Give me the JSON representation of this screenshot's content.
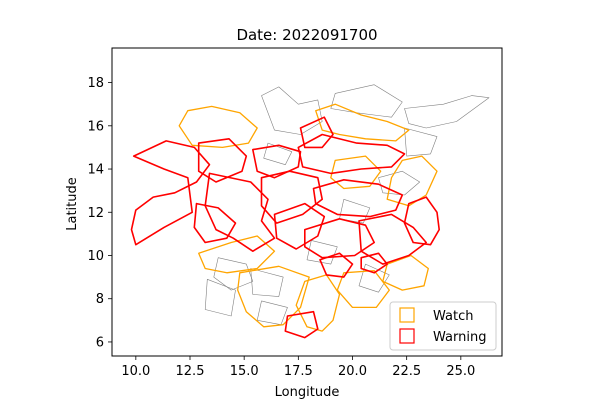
{
  "chart_data": {
    "type": "map",
    "title": "Date: 2022091700",
    "xlabel": "Longitude",
    "ylabel": "Latitude",
    "xlim": [
      8.9,
      26.9
    ],
    "ylim": [
      5.35,
      19.6
    ],
    "x_ticks": [
      10.0,
      12.5,
      15.0,
      17.5,
      20.0,
      22.5,
      25.0
    ],
    "x_tick_labels": [
      "10.0",
      "12.5",
      "15.0",
      "17.5",
      "20.0",
      "22.5",
      "25.0"
    ],
    "y_ticks": [
      6,
      8,
      10,
      12,
      14,
      16,
      18
    ],
    "y_tick_labels": [
      "6",
      "8",
      "10",
      "12",
      "14",
      "16",
      "18"
    ],
    "legend": {
      "placement": "lower-right",
      "entries": [
        {
          "label": "Watch",
          "color": "#ffa500"
        },
        {
          "label": "Warning",
          "color": "#ff0000"
        }
      ]
    },
    "base_color": "#808080",
    "watch_color": "#ffa500",
    "warning_color": "#ff0000",
    "base_regions": [
      [
        [
          15.8,
          17.4
        ],
        [
          16.6,
          17.8
        ],
        [
          17.5,
          17.0
        ],
        [
          18.4,
          17.2
        ],
        [
          18.6,
          16.2
        ],
        [
          17.6,
          15.6
        ],
        [
          16.4,
          15.8
        ]
      ],
      [
        [
          19.2,
          17.5
        ],
        [
          21.0,
          17.9
        ],
        [
          22.3,
          17.1
        ],
        [
          21.8,
          16.4
        ],
        [
          20.2,
          16.6
        ],
        [
          19.0,
          16.8
        ]
      ],
      [
        [
          22.4,
          16.8
        ],
        [
          24.2,
          17.0
        ],
        [
          25.5,
          17.4
        ],
        [
          26.3,
          17.3
        ],
        [
          24.8,
          16.2
        ],
        [
          23.4,
          15.9
        ],
        [
          22.6,
          16.1
        ]
      ],
      [
        [
          22.4,
          15.9
        ],
        [
          23.9,
          15.5
        ],
        [
          23.6,
          14.7
        ],
        [
          22.5,
          14.6
        ]
      ],
      [
        [
          21.2,
          13.6
        ],
        [
          22.3,
          13.9
        ],
        [
          23.1,
          13.4
        ],
        [
          22.4,
          12.8
        ],
        [
          21.4,
          12.9
        ]
      ],
      [
        [
          13.8,
          9.9
        ],
        [
          15.1,
          9.6
        ],
        [
          15.4,
          8.8
        ],
        [
          14.4,
          8.4
        ],
        [
          13.6,
          9.0
        ]
      ],
      [
        [
          15.3,
          9.4
        ],
        [
          16.8,
          9.0
        ],
        [
          16.6,
          8.1
        ],
        [
          15.4,
          8.2
        ]
      ],
      [
        [
          18.1,
          10.7
        ],
        [
          19.3,
          10.4
        ],
        [
          19.0,
          9.6
        ],
        [
          17.9,
          9.8
        ]
      ],
      [
        [
          20.6,
          9.6
        ],
        [
          21.7,
          9.1
        ],
        [
          21.2,
          8.3
        ],
        [
          20.3,
          8.6
        ]
      ],
      [
        [
          13.3,
          8.9
        ],
        [
          14.6,
          8.4
        ],
        [
          14.4,
          7.2
        ],
        [
          13.2,
          7.5
        ]
      ],
      [
        [
          15.8,
          7.9
        ],
        [
          17.0,
          7.6
        ],
        [
          16.7,
          6.8
        ],
        [
          15.6,
          7.0
        ]
      ],
      [
        [
          19.6,
          12.6
        ],
        [
          20.8,
          12.2
        ],
        [
          20.5,
          11.5
        ],
        [
          19.4,
          11.7
        ]
      ],
      [
        [
          16.1,
          15.2
        ],
        [
          17.2,
          14.8
        ],
        [
          16.9,
          14.2
        ],
        [
          15.9,
          14.5
        ]
      ]
    ],
    "watch_regions": [
      [
        [
          12.0,
          16.0
        ],
        [
          12.4,
          16.7
        ],
        [
          13.5,
          16.9
        ],
        [
          14.8,
          16.6
        ],
        [
          15.6,
          15.9
        ],
        [
          15.2,
          15.2
        ],
        [
          14.0,
          15.0
        ],
        [
          12.6,
          15.1
        ]
      ],
      [
        [
          18.3,
          16.7
        ],
        [
          19.2,
          17.0
        ],
        [
          20.4,
          16.5
        ],
        [
          21.6,
          16.2
        ],
        [
          22.6,
          15.8
        ],
        [
          22.0,
          15.3
        ],
        [
          20.6,
          15.4
        ],
        [
          19.4,
          15.6
        ],
        [
          18.6,
          15.8
        ]
      ],
      [
        [
          22.3,
          14.4
        ],
        [
          23.2,
          14.6
        ],
        [
          23.9,
          13.9
        ],
        [
          23.4,
          12.8
        ],
        [
          22.6,
          12.3
        ],
        [
          21.6,
          12.6
        ],
        [
          21.8,
          13.6
        ]
      ],
      [
        [
          12.9,
          10.1
        ],
        [
          14.4,
          10.6
        ],
        [
          15.6,
          10.9
        ],
        [
          16.4,
          10.2
        ],
        [
          15.6,
          9.4
        ],
        [
          14.2,
          9.2
        ],
        [
          13.2,
          9.4
        ]
      ],
      [
        [
          14.8,
          9.2
        ],
        [
          16.6,
          9.5
        ],
        [
          18.0,
          9.0
        ],
        [
          17.6,
          7.6
        ],
        [
          16.8,
          6.8
        ],
        [
          15.9,
          6.7
        ],
        [
          15.1,
          7.4
        ],
        [
          14.7,
          8.4
        ]
      ],
      [
        [
          17.8,
          8.8
        ],
        [
          18.8,
          9.1
        ],
        [
          19.4,
          8.2
        ],
        [
          19.1,
          7.0
        ],
        [
          18.6,
          6.5
        ],
        [
          17.9,
          6.7
        ],
        [
          17.4,
          7.7
        ]
      ],
      [
        [
          19.6,
          9.2
        ],
        [
          21.0,
          9.3
        ],
        [
          21.7,
          8.4
        ],
        [
          21.1,
          7.6
        ],
        [
          20.0,
          7.6
        ],
        [
          19.3,
          8.4
        ]
      ],
      [
        [
          21.6,
          9.6
        ],
        [
          22.7,
          10.0
        ],
        [
          23.5,
          9.4
        ],
        [
          23.3,
          8.6
        ],
        [
          22.3,
          8.4
        ],
        [
          21.4,
          8.8
        ]
      ],
      [
        [
          19.2,
          14.4
        ],
        [
          20.6,
          14.6
        ],
        [
          21.3,
          13.9
        ],
        [
          20.8,
          13.2
        ],
        [
          19.6,
          13.1
        ],
        [
          19.0,
          13.6
        ]
      ]
    ],
    "warning_regions": [
      [
        [
          9.9,
          14.6
        ],
        [
          11.4,
          15.3
        ],
        [
          12.7,
          15.0
        ],
        [
          13.4,
          14.2
        ],
        [
          12.8,
          13.4
        ],
        [
          11.8,
          12.9
        ],
        [
          10.8,
          12.7
        ],
        [
          10.0,
          12.1
        ],
        [
          9.8,
          11.2
        ],
        [
          10.0,
          10.5
        ],
        [
          11.3,
          11.3
        ],
        [
          12.6,
          12.0
        ],
        [
          12.4,
          13.6
        ],
        [
          11.3,
          14.0
        ]
      ],
      [
        [
          12.9,
          15.2
        ],
        [
          14.3,
          15.4
        ],
        [
          15.1,
          14.6
        ],
        [
          14.9,
          13.9
        ],
        [
          13.7,
          13.4
        ],
        [
          12.9,
          13.9
        ]
      ],
      [
        [
          13.4,
          13.8
        ],
        [
          15.3,
          13.4
        ],
        [
          16.1,
          12.6
        ],
        [
          15.8,
          11.6
        ],
        [
          16.4,
          10.8
        ],
        [
          15.4,
          10.2
        ],
        [
          14.5,
          10.8
        ],
        [
          13.7,
          11.2
        ],
        [
          13.2,
          12.3
        ]
      ],
      [
        [
          15.4,
          14.9
        ],
        [
          16.6,
          15.1
        ],
        [
          17.6,
          14.8
        ],
        [
          17.5,
          14.1
        ],
        [
          16.4,
          13.6
        ],
        [
          15.6,
          13.9
        ]
      ],
      [
        [
          17.6,
          15.9
        ],
        [
          18.7,
          16.4
        ],
        [
          19.1,
          15.6
        ],
        [
          18.6,
          15.0
        ],
        [
          17.8,
          15.0
        ]
      ],
      [
        [
          17.5,
          15.0
        ],
        [
          18.6,
          15.6
        ],
        [
          20.2,
          15.2
        ],
        [
          21.6,
          15.1
        ],
        [
          22.4,
          14.7
        ],
        [
          21.8,
          14.1
        ],
        [
          20.4,
          14.0
        ],
        [
          19.0,
          13.8
        ],
        [
          17.7,
          14.1
        ]
      ],
      [
        [
          15.8,
          13.6
        ],
        [
          17.1,
          13.9
        ],
        [
          18.4,
          13.6
        ],
        [
          18.6,
          12.6
        ],
        [
          17.7,
          11.9
        ],
        [
          16.5,
          11.5
        ],
        [
          15.8,
          12.3
        ]
      ],
      [
        [
          18.2,
          13.1
        ],
        [
          19.6,
          13.5
        ],
        [
          21.2,
          13.3
        ],
        [
          22.3,
          12.8
        ],
        [
          22.0,
          12.1
        ],
        [
          20.8,
          11.8
        ],
        [
          19.3,
          11.9
        ],
        [
          18.3,
          12.4
        ]
      ],
      [
        [
          16.4,
          11.9
        ],
        [
          17.8,
          12.4
        ],
        [
          18.7,
          11.8
        ],
        [
          18.4,
          10.9
        ],
        [
          17.4,
          10.3
        ],
        [
          16.5,
          10.8
        ]
      ],
      [
        [
          17.8,
          11.2
        ],
        [
          19.4,
          11.7
        ],
        [
          20.6,
          11.4
        ],
        [
          21.0,
          10.6
        ],
        [
          20.1,
          10.0
        ],
        [
          18.6,
          9.9
        ],
        [
          17.8,
          10.4
        ]
      ],
      [
        [
          20.3,
          11.6
        ],
        [
          21.8,
          11.9
        ],
        [
          22.8,
          11.3
        ],
        [
          23.4,
          10.6
        ],
        [
          22.6,
          10.0
        ],
        [
          21.4,
          9.6
        ],
        [
          20.4,
          10.2
        ]
      ],
      [
        [
          22.6,
          12.4
        ],
        [
          23.4,
          12.7
        ],
        [
          23.9,
          12.0
        ],
        [
          24.0,
          11.2
        ],
        [
          23.6,
          10.5
        ],
        [
          22.8,
          10.6
        ],
        [
          22.4,
          11.5
        ]
      ],
      [
        [
          12.8,
          12.4
        ],
        [
          13.8,
          12.2
        ],
        [
          14.6,
          11.5
        ],
        [
          14.2,
          10.8
        ],
        [
          13.2,
          10.6
        ],
        [
          12.7,
          11.3
        ]
      ],
      [
        [
          18.5,
          9.8
        ],
        [
          19.4,
          10.1
        ],
        [
          20.0,
          9.6
        ],
        [
          19.6,
          9.0
        ],
        [
          18.8,
          9.1
        ]
      ],
      [
        [
          17.0,
          7.2
        ],
        [
          18.2,
          7.4
        ],
        [
          18.4,
          6.6
        ],
        [
          17.8,
          6.2
        ],
        [
          16.9,
          6.5
        ]
      ],
      [
        [
          20.4,
          9.9
        ],
        [
          21.2,
          10.1
        ],
        [
          21.6,
          9.6
        ],
        [
          21.0,
          9.2
        ],
        [
          20.4,
          9.4
        ]
      ]
    ]
  }
}
